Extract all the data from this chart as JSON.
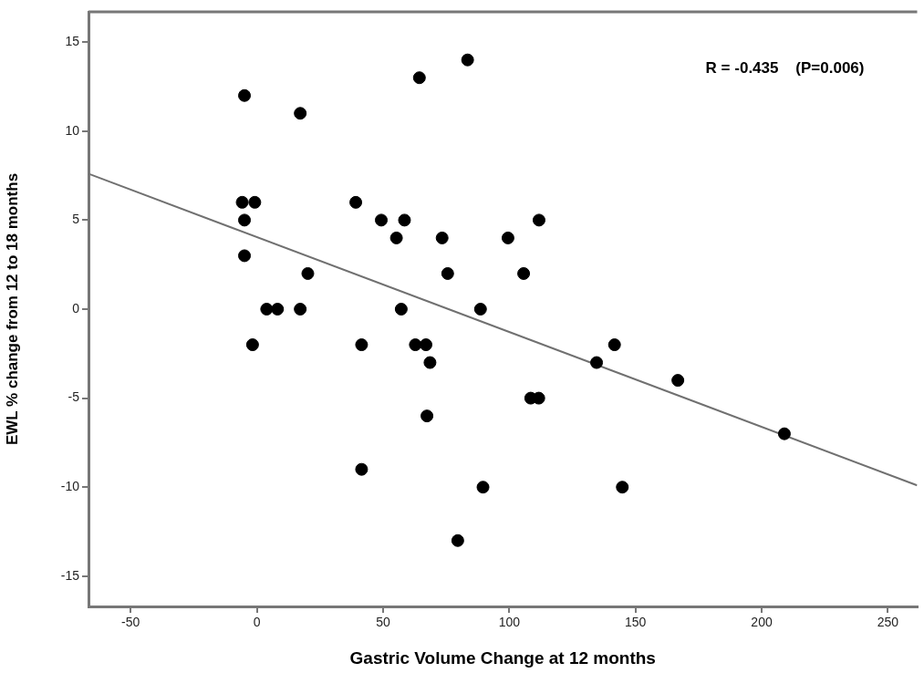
{
  "chart_data": {
    "type": "scatter",
    "xlabel": "Gastric Volume Change at 12 months",
    "ylabel": "EWL % change from 12 to 18 months",
    "annotations": [
      "R = -0.435    (P=0.006)"
    ],
    "xlim": [
      -66.7,
      261.6
    ],
    "ylim": [
      -16.7,
      16.7
    ],
    "xticks": [
      -50,
      0,
      50,
      100,
      150,
      200,
      250
    ],
    "yticks": [
      -15,
      -10,
      -5,
      0,
      5,
      10,
      15
    ],
    "marker": "circle",
    "series": [
      {
        "type": "scatter",
        "color": "#000000",
        "x": [
          -4.9,
          17.2,
          -5.8,
          -0.8,
          39.2,
          -4.9,
          49.3,
          58.5,
          55.3,
          -4.9,
          20.2,
          3.9,
          8.2,
          17.2,
          57.2,
          83.5,
          64.4,
          111.8,
          73.4,
          99.5,
          75.6,
          105.7,
          88.6,
          -1.7,
          41.5,
          62.8,
          67,
          68.6,
          67.4,
          41.5,
          89.6,
          79.6,
          108.5,
          111.7,
          141.7,
          134.6,
          166.8,
          209,
          144.8
        ],
        "values": [
          12,
          11,
          6,
          6,
          6,
          5,
          5,
          5,
          4,
          3,
          2,
          0,
          0,
          0,
          0,
          14,
          13,
          5,
          4,
          4,
          2,
          2,
          0,
          -2,
          -2,
          -2,
          -2,
          -3,
          -6,
          -9,
          -10,
          -13,
          -5,
          -5,
          -2,
          -3,
          -4,
          -7,
          -10
        ]
      },
      {
        "type": "line",
        "color": "#707070",
        "marker": "none",
        "x": [
          -66.6,
          261.6
        ],
        "values": [
          7.6,
          -9.9
        ]
      }
    ]
  }
}
